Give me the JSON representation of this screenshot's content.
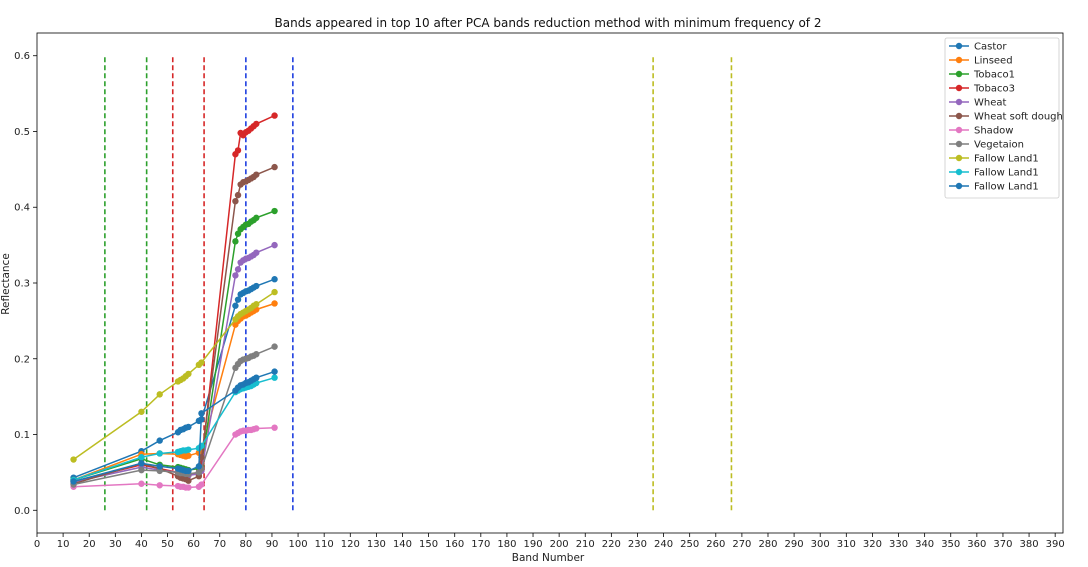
{
  "chart_data": {
    "type": "line",
    "title": "Bands appeared in top 10 after PCA bands reduction method with minimum frequency of 2",
    "xlabel": "Band Number",
    "ylabel": "Reflectance",
    "xlim": [
      0,
      393
    ],
    "ylim": [
      -0.03,
      0.63
    ],
    "xticks": [
      0,
      10,
      20,
      30,
      40,
      50,
      60,
      70,
      80,
      90,
      100,
      110,
      120,
      130,
      140,
      150,
      160,
      170,
      180,
      190,
      200,
      210,
      220,
      230,
      240,
      250,
      260,
      270,
      280,
      290,
      300,
      310,
      320,
      330,
      340,
      350,
      360,
      370,
      380,
      390
    ],
    "yticks": [
      0.0,
      0.1,
      0.2,
      0.3,
      0.4,
      0.5,
      0.6
    ],
    "ytick_labels": [
      "0.0",
      "0.1",
      "0.2",
      "0.3",
      "0.4",
      "0.5",
      "0.6"
    ],
    "grid": false,
    "legend_position": "top-right",
    "x": [
      14,
      40,
      47,
      54,
      55,
      56,
      57,
      58,
      62,
      63,
      76,
      77,
      78,
      79,
      80,
      81,
      82,
      83,
      84,
      91
    ],
    "series": [
      {
        "name": "Castor",
        "color": "#1f77b4",
        "values": [
          0.043,
          0.078,
          0.092,
          0.103,
          0.106,
          0.107,
          0.109,
          0.11,
          0.118,
          0.12,
          0.27,
          0.278,
          0.285,
          0.287,
          0.289,
          0.29,
          0.292,
          0.294,
          0.296,
          0.305
        ]
      },
      {
        "name": "Linseed",
        "color": "#ff7f0e",
        "values": [
          0.04,
          0.074,
          0.075,
          0.074,
          0.073,
          0.072,
          0.071,
          0.072,
          0.076,
          0.078,
          0.245,
          0.25,
          0.253,
          0.256,
          0.257,
          0.259,
          0.261,
          0.263,
          0.265,
          0.273
        ]
      },
      {
        "name": "Tobaco1",
        "color": "#2ca02c",
        "values": [
          0.04,
          0.068,
          0.06,
          0.057,
          0.056,
          0.055,
          0.054,
          0.053,
          0.055,
          0.06,
          0.355,
          0.365,
          0.371,
          0.374,
          0.377,
          0.378,
          0.381,
          0.383,
          0.386,
          0.395
        ]
      },
      {
        "name": "Tobaco3",
        "color": "#d62728",
        "values": [
          0.038,
          0.06,
          0.055,
          0.05,
          0.049,
          0.048,
          0.047,
          0.046,
          0.05,
          0.062,
          0.47,
          0.475,
          0.498,
          0.495,
          0.499,
          0.501,
          0.504,
          0.507,
          0.51,
          0.521
        ]
      },
      {
        "name": "Wheat",
        "color": "#9467bd",
        "values": [
          0.037,
          0.057,
          0.053,
          0.05,
          0.049,
          0.048,
          0.047,
          0.046,
          0.048,
          0.052,
          0.31,
          0.318,
          0.327,
          0.33,
          0.332,
          0.333,
          0.335,
          0.337,
          0.34,
          0.35
        ]
      },
      {
        "name": "Wheat soft dough",
        "color": "#8c564b",
        "values": [
          0.035,
          0.062,
          0.055,
          0.045,
          0.043,
          0.042,
          0.041,
          0.039,
          0.045,
          0.07,
          0.408,
          0.416,
          0.43,
          0.433,
          0.434,
          0.436,
          0.438,
          0.44,
          0.443,
          0.453
        ]
      },
      {
        "name": "Shadow",
        "color": "#e377c2",
        "values": [
          0.031,
          0.035,
          0.033,
          0.032,
          0.031,
          0.031,
          0.03,
          0.03,
          0.031,
          0.034,
          0.1,
          0.102,
          0.104,
          0.105,
          0.105,
          0.106,
          0.106,
          0.107,
          0.108,
          0.109
        ]
      },
      {
        "name": "Vegetaion",
        "color": "#7f7f7f",
        "values": [
          0.034,
          0.053,
          0.052,
          0.05,
          0.049,
          0.049,
          0.048,
          0.048,
          0.05,
          0.055,
          0.188,
          0.193,
          0.197,
          0.199,
          0.2,
          0.201,
          0.203,
          0.204,
          0.206,
          0.216
        ]
      },
      {
        "name": "Fallow Land1",
        "color": "#bcbd22",
        "values": [
          0.067,
          0.13,
          0.153,
          0.17,
          0.172,
          0.174,
          0.177,
          0.18,
          0.192,
          0.195,
          0.252,
          0.256,
          0.259,
          0.261,
          0.263,
          0.265,
          0.267,
          0.27,
          0.272,
          0.288
        ]
      },
      {
        "name": "Fallow Land1",
        "color": "#17becf",
        "values": [
          0.04,
          0.07,
          0.075,
          0.077,
          0.078,
          0.079,
          0.079,
          0.08,
          0.082,
          0.085,
          0.156,
          0.158,
          0.16,
          0.161,
          0.162,
          0.163,
          0.164,
          0.166,
          0.168,
          0.175
        ]
      },
      {
        "name": "Fallow Land1",
        "color": "#1f77b4",
        "values": [
          0.038,
          0.062,
          0.058,
          0.055,
          0.054,
          0.053,
          0.052,
          0.052,
          0.058,
          0.128,
          0.158,
          0.162,
          0.165,
          0.166,
          0.168,
          0.169,
          0.171,
          0.173,
          0.175,
          0.183
        ]
      }
    ],
    "vlines": [
      {
        "x": 26,
        "color": "#2ca02c"
      },
      {
        "x": 42,
        "color": "#2ca02c"
      },
      {
        "x": 52,
        "color": "#d62728"
      },
      {
        "x": 64,
        "color": "#d62728"
      },
      {
        "x": 80,
        "color": "#1f3fe0"
      },
      {
        "x": 98,
        "color": "#1f3fe0"
      },
      {
        "x": 236,
        "color": "#bcbd22"
      },
      {
        "x": 266,
        "color": "#bcbd22"
      }
    ],
    "vline_range": [
      0.0,
      0.6
    ]
  }
}
